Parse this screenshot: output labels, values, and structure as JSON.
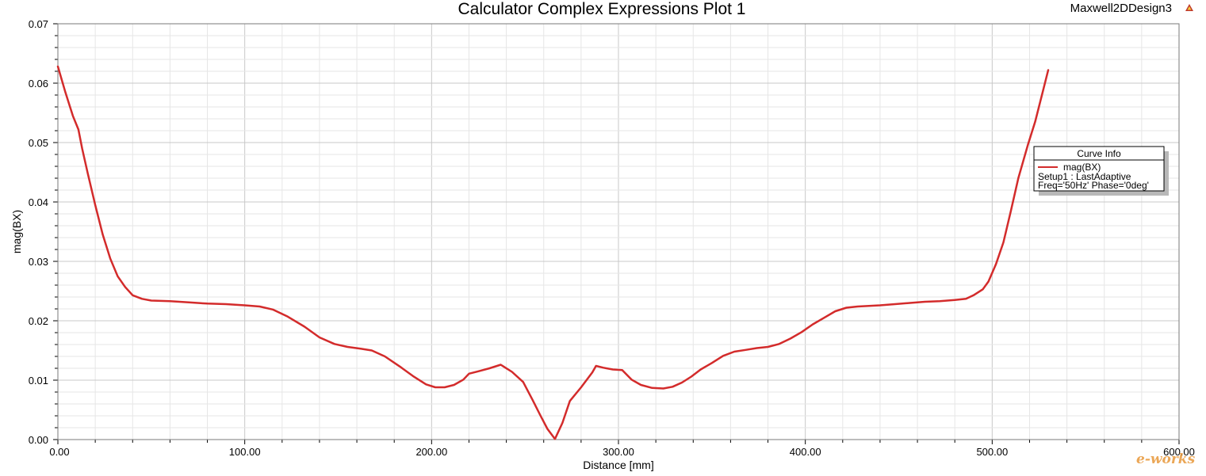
{
  "window": {
    "design_name": "Maxwell2DDesign3",
    "design_icon": "ansys-triangle-icon"
  },
  "watermark": {
    "text": "e-works"
  },
  "colors": {
    "curve": "#d32b2b",
    "grid_major": "#c8c8c8",
    "grid_minor": "#e6e6e6",
    "legend_shadow": "#b8b8b8"
  },
  "chart_data": {
    "type": "line",
    "title": "Calculator Complex Expressions Plot 1",
    "xlabel": "Distance [mm]",
    "ylabel": "mag(BX)",
    "xlim": [
      0,
      600
    ],
    "ylim": [
      0,
      0.07
    ],
    "x_ticks": [
      0,
      100,
      200,
      300,
      400,
      500,
      600
    ],
    "x_tick_labels": [
      "0.00",
      "100.00",
      "200.00",
      "300.00",
      "400.00",
      "500.00",
      "600.00"
    ],
    "y_ticks": [
      0,
      0.01,
      0.02,
      0.03,
      0.04,
      0.05,
      0.06,
      0.07
    ],
    "y_tick_labels": [
      "0.00",
      "0.01",
      "0.02",
      "0.03",
      "0.04",
      "0.05",
      "0.06",
      "0.07"
    ],
    "grid": true,
    "legend": {
      "title": "Curve Info",
      "placement": "right",
      "entries": [
        {
          "name": "mag(BX)",
          "line1": "Setup1 : LastAdaptive",
          "line2": "Freq='50Hz' Phase='0deg'"
        }
      ]
    },
    "series": [
      {
        "name": "mag(BX)",
        "x": [
          0,
          4,
          8,
          11,
          13,
          16,
          20,
          24,
          28,
          32,
          36,
          40,
          45,
          50,
          60,
          70,
          80,
          90,
          100,
          108,
          115,
          123,
          132,
          140,
          148,
          155,
          162,
          168,
          175,
          183,
          190,
          197,
          202,
          207,
          212,
          217,
          220,
          225,
          231,
          237,
          243,
          249,
          254,
          258,
          262,
          266,
          270,
          274,
          280,
          286,
          288,
          292,
          297,
          302,
          307,
          312,
          318,
          324,
          329,
          334,
          339,
          344,
          350,
          356,
          362,
          368,
          374,
          380,
          386,
          392,
          398,
          404,
          410,
          416,
          422,
          428,
          434,
          440,
          448,
          456,
          464,
          472,
          480,
          486,
          490,
          495,
          498,
          502,
          506,
          510,
          514,
          519,
          523,
          527,
          530
        ],
        "values": [
          0.0628,
          0.0585,
          0.0545,
          0.0522,
          0.049,
          0.0448,
          0.0395,
          0.0345,
          0.0305,
          0.0275,
          0.0257,
          0.0243,
          0.0237,
          0.0234,
          0.0233,
          0.0231,
          0.0229,
          0.0228,
          0.0226,
          0.0224,
          0.0219,
          0.0207,
          0.019,
          0.0172,
          0.0161,
          0.0156,
          0.0153,
          0.015,
          0.014,
          0.0123,
          0.0107,
          0.0093,
          0.0088,
          0.0088,
          0.0092,
          0.0101,
          0.0111,
          0.0115,
          0.012,
          0.0126,
          0.0114,
          0.0097,
          0.0067,
          0.0042,
          0.0018,
          0.0001,
          0.0028,
          0.0065,
          0.0088,
          0.0113,
          0.0124,
          0.0121,
          0.0118,
          0.0117,
          0.0101,
          0.0092,
          0.0087,
          0.0086,
          0.0089,
          0.0096,
          0.0106,
          0.0118,
          0.0129,
          0.0141,
          0.0148,
          0.0151,
          0.0154,
          0.0156,
          0.0161,
          0.017,
          0.0181,
          0.0194,
          0.0205,
          0.0216,
          0.0222,
          0.0224,
          0.0225,
          0.0226,
          0.0228,
          0.023,
          0.0232,
          0.0233,
          0.0235,
          0.0237,
          0.0243,
          0.0253,
          0.0266,
          0.0295,
          0.0332,
          0.0385,
          0.044,
          0.0495,
          0.0535,
          0.0585,
          0.0622
        ]
      }
    ]
  }
}
